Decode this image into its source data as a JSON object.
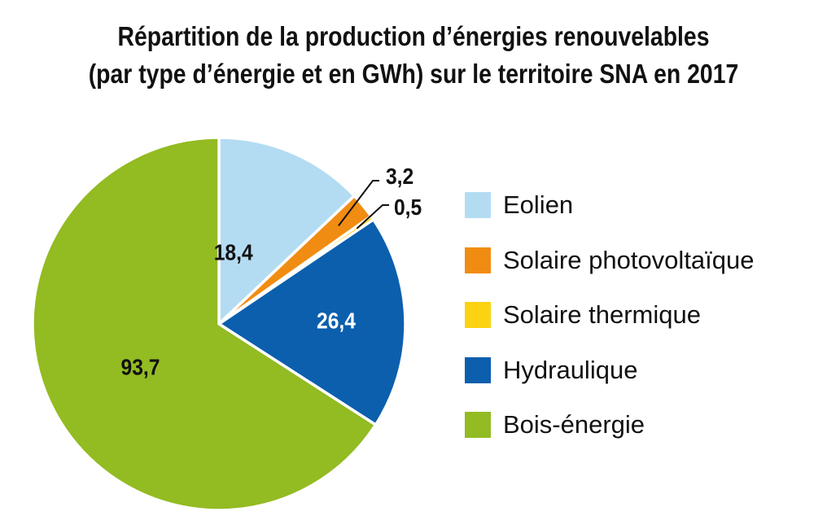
{
  "chart_data": {
    "type": "pie",
    "title_lines": [
      "Répartition de la production d’énergies renouvelables",
      "(par type d’énergie et en GWh) sur le territoire SNA en 2017"
    ],
    "slices": [
      {
        "label": "Eolien",
        "value": 18.4,
        "value_label": "18,4",
        "color": "#b3dcf2",
        "text_color": "#111111"
      },
      {
        "label": "Solaire photovoltaïque",
        "value": 3.2,
        "value_label": "3,2",
        "color": "#f18c12",
        "text_color": "#111111"
      },
      {
        "label": "Solaire thermique",
        "value": 0.5,
        "value_label": "0,5",
        "color": "#fcd312",
        "text_color": "#111111"
      },
      {
        "label": "Hydraulique",
        "value": 26.4,
        "value_label": "26,4",
        "color": "#0b5fad",
        "text_color": "#ffffff"
      },
      {
        "label": "Bois-énergie",
        "value": 93.7,
        "value_label": "93,7",
        "color": "#93bb22",
        "text_color": "#111111"
      }
    ],
    "start_direction": "top",
    "direction": "clockwise",
    "legend_position": "right"
  }
}
